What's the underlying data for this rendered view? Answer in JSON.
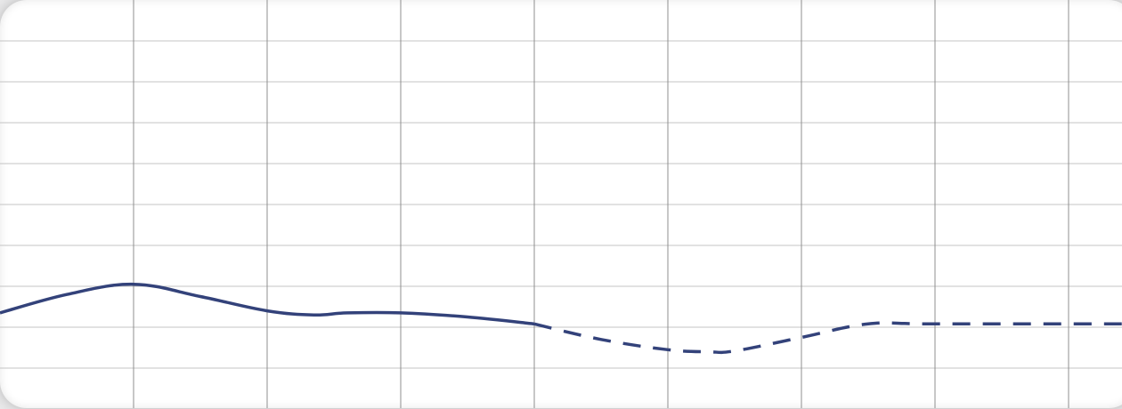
{
  "colors": {
    "series": "#33427a",
    "grid_major": "#8f8f8f",
    "grid_minor": "#c4c4c4",
    "card": "#ffffff",
    "background": "#e9e9ea"
  },
  "chart_data": {
    "type": "line",
    "title": "",
    "xlabel": "",
    "ylabel": "",
    "grid": true,
    "legend": "none",
    "xlim": [
      0,
      8.4
    ],
    "ylim": [
      0,
      10
    ],
    "x_major_step": 1,
    "y_minor_step": 1,
    "series": [
      {
        "style": "solid",
        "x": [
          0,
          0.5,
          1,
          1.5,
          2,
          2.35,
          2.6,
          3,
          3.5,
          4
        ],
        "y": [
          2.35,
          2.8,
          3.05,
          2.75,
          2.4,
          2.3,
          2.35,
          2.35,
          2.25,
          2.08
        ]
      },
      {
        "style": "dashed",
        "x": [
          4,
          4.5,
          5,
          5.3,
          5.5,
          6,
          6.5,
          7,
          8.4
        ],
        "y": [
          2.08,
          1.7,
          1.45,
          1.4,
          1.42,
          1.75,
          2.08,
          2.08,
          2.08
        ]
      }
    ]
  }
}
